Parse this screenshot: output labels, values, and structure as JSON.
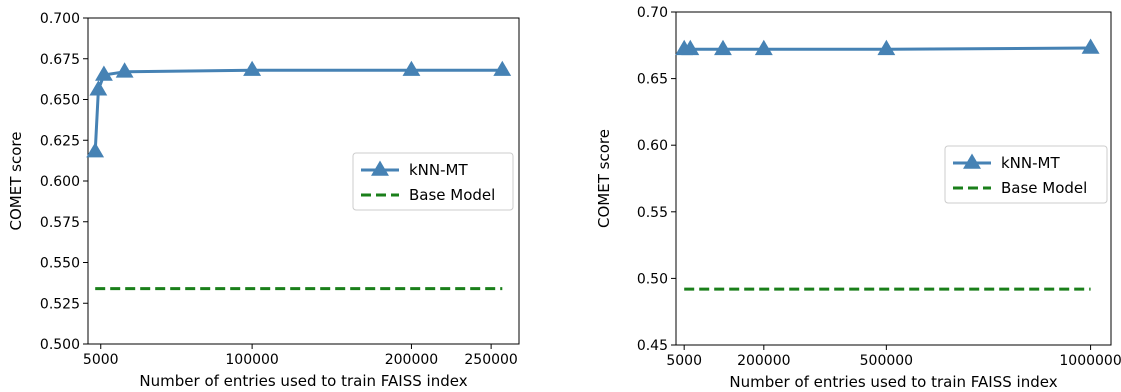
{
  "colors": {
    "knn": "#4682b4",
    "base": "#1a7f1a",
    "axis": "#000000",
    "legend_border": "#cccccc"
  },
  "chart_data": [
    {
      "type": "line",
      "title": "",
      "xlabel": "Number of entries used to train FAISS index",
      "ylabel": "COMET score",
      "xlim": [
        -3000,
        267500
      ],
      "ylim": [
        0.5,
        0.7
      ],
      "xticks": [
        5000,
        100000,
        200000,
        250000
      ],
      "xtick_labels": [
        "5000",
        "100000",
        "200000",
        "250000"
      ],
      "yticks": [
        0.5,
        0.525,
        0.55,
        0.575,
        0.6,
        0.625,
        0.65,
        0.675,
        0.7
      ],
      "ytick_labels": [
        "0.500",
        "0.525",
        "0.550",
        "0.575",
        "0.600",
        "0.625",
        "0.650",
        "0.675",
        "0.700"
      ],
      "legend": "center right",
      "series": [
        {
          "name": "kNN-MT",
          "style": "solid-triangle",
          "x": [
            1500,
            3500,
            7000,
            20000,
            100000,
            200000,
            257000
          ],
          "y": [
            0.618,
            0.656,
            0.665,
            0.667,
            0.668,
            0.668,
            0.668
          ]
        },
        {
          "name": "Base Model",
          "style": "dashed",
          "x": [
            1500,
            257000
          ],
          "y": [
            0.534,
            0.534
          ]
        }
      ]
    },
    {
      "type": "line",
      "title": "",
      "xlabel": "Number of entries used to train FAISS index",
      "ylabel": "COMET score",
      "xlim": [
        -15000,
        1050000
      ],
      "ylim": [
        0.45,
        0.7
      ],
      "xticks": [
        5000,
        200000,
        500000,
        1000000
      ],
      "xtick_labels": [
        "5000",
        "200000",
        "500000",
        "1000000"
      ],
      "yticks": [
        0.45,
        0.5,
        0.55,
        0.6,
        0.65,
        0.7
      ],
      "ytick_labels": [
        "0.45",
        "0.50",
        "0.55",
        "0.60",
        "0.65",
        "0.70"
      ],
      "legend": "center right",
      "series": [
        {
          "name": "kNN-MT",
          "style": "solid-triangle",
          "x": [
            5000,
            20000,
            100000,
            200000,
            500000,
            1000000
          ],
          "y": [
            0.672,
            0.672,
            0.672,
            0.672,
            0.672,
            0.673
          ]
        },
        {
          "name": "Base Model",
          "style": "dashed",
          "x": [
            5000,
            1000000
          ],
          "y": [
            0.492,
            0.492
          ]
        }
      ]
    }
  ]
}
